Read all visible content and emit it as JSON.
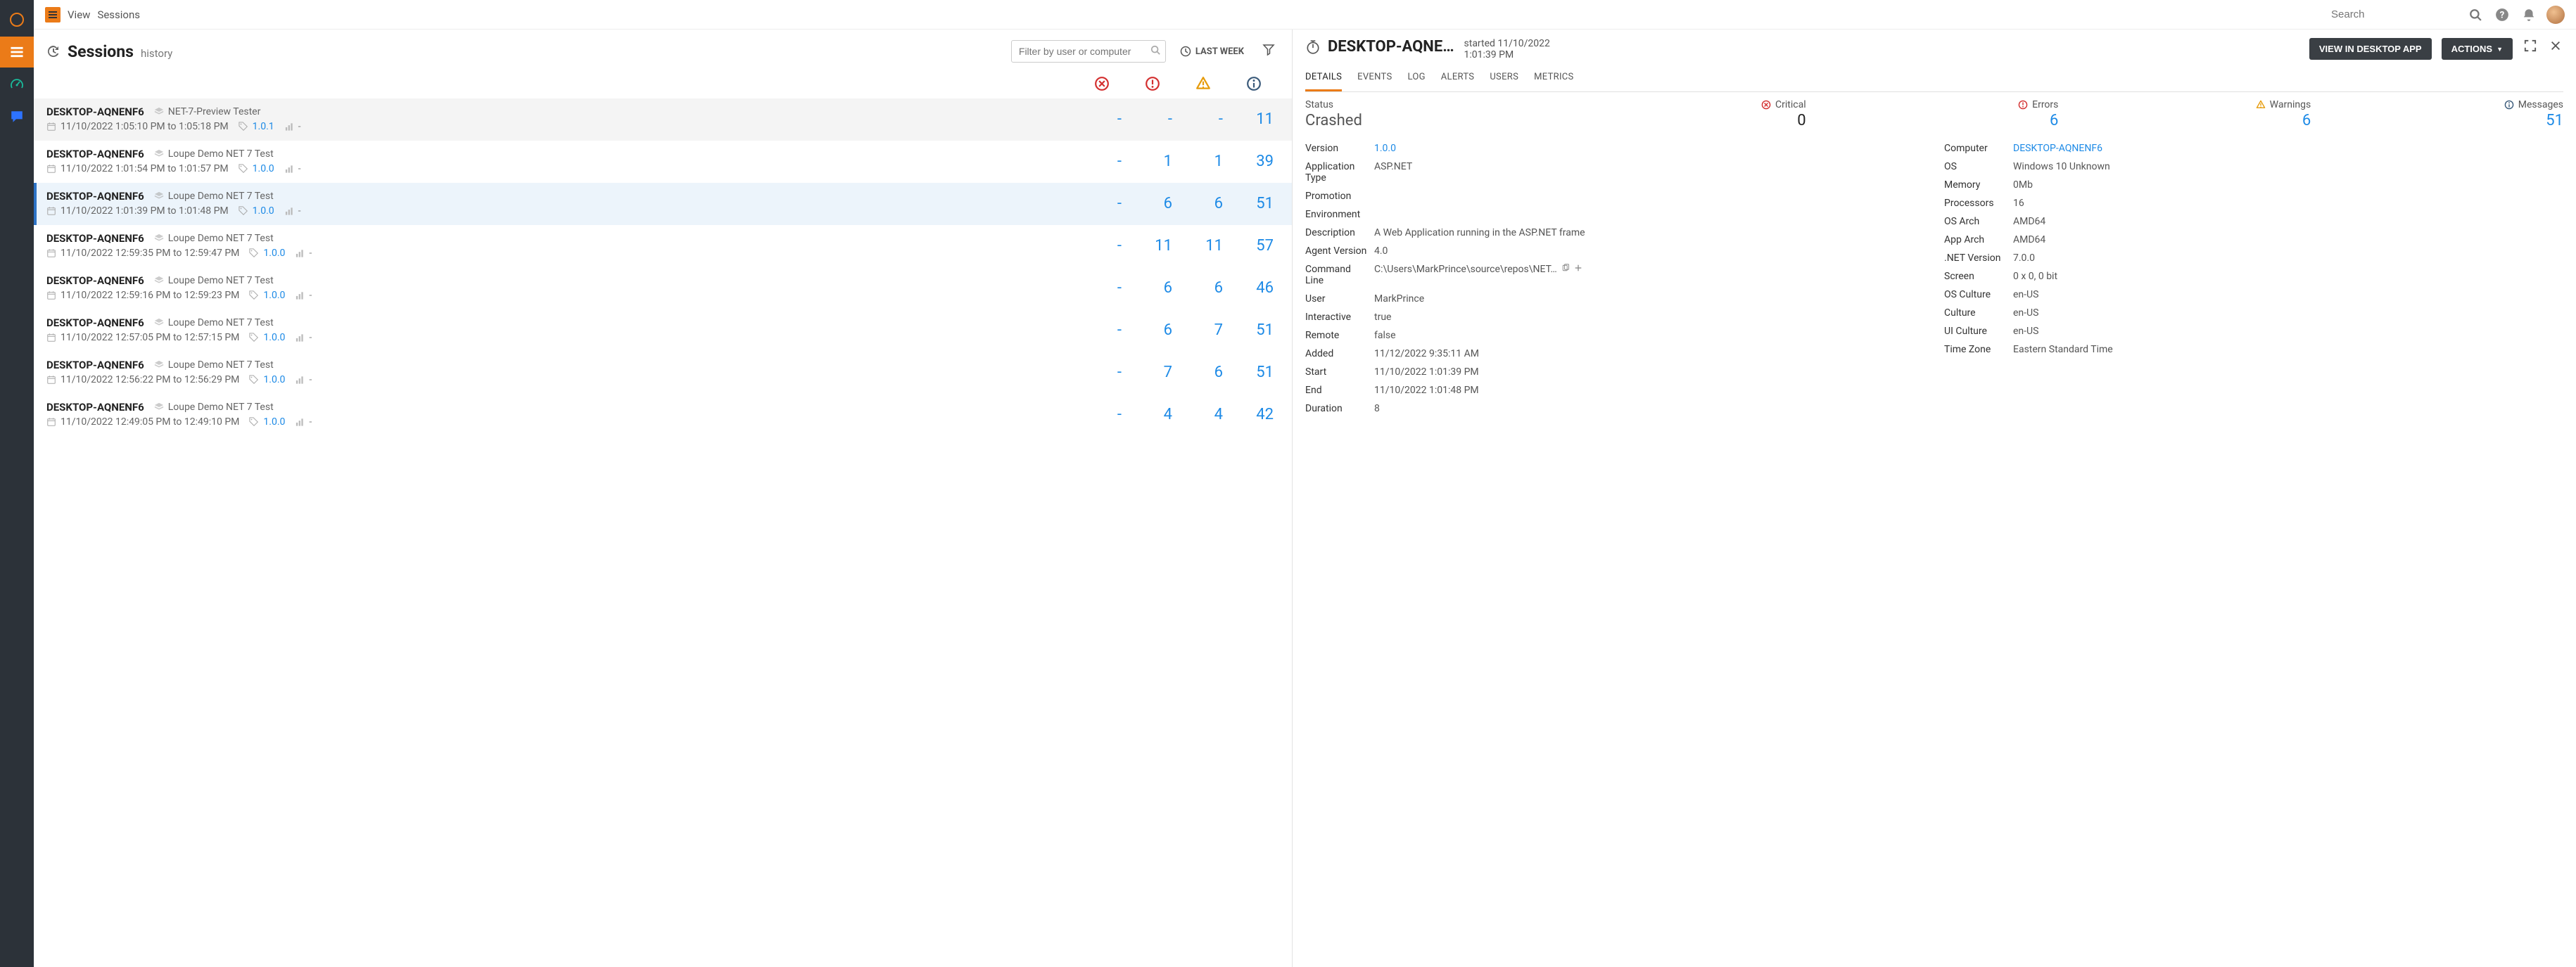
{
  "breadcrumb": {
    "view": "View",
    "section": "Sessions"
  },
  "search_placeholder": "Search",
  "sessions": {
    "title": "Sessions",
    "subtitle": "history",
    "filter_placeholder": "Filter by user or computer",
    "range_label": "LAST WEEK",
    "rows": [
      {
        "computer": "DESKTOP-AQNENF6",
        "app": "NET-7-Preview Tester",
        "time": "11/10/2022 1:05:10 PM to 1:05:18 PM",
        "version": "1.0.1",
        "env": "-",
        "critical": "-",
        "errors": "-",
        "warnings": "-",
        "messages": "11",
        "state": "hovered"
      },
      {
        "computer": "DESKTOP-AQNENF6",
        "app": "Loupe Demo NET 7 Test",
        "time": "11/10/2022 1:01:54 PM to 1:01:57 PM",
        "version": "1.0.0",
        "env": "-",
        "critical": "-",
        "errors": "1",
        "warnings": "1",
        "messages": "39",
        "state": ""
      },
      {
        "computer": "DESKTOP-AQNENF6",
        "app": "Loupe Demo NET 7 Test",
        "time": "11/10/2022 1:01:39 PM to 1:01:48 PM",
        "version": "1.0.0",
        "env": "-",
        "critical": "-",
        "errors": "6",
        "warnings": "6",
        "messages": "51",
        "state": "selected"
      },
      {
        "computer": "DESKTOP-AQNENF6",
        "app": "Loupe Demo NET 7 Test",
        "time": "11/10/2022 12:59:35 PM to 12:59:47 PM",
        "version": "1.0.0",
        "env": "-",
        "critical": "-",
        "errors": "11",
        "warnings": "11",
        "messages": "57",
        "state": ""
      },
      {
        "computer": "DESKTOP-AQNENF6",
        "app": "Loupe Demo NET 7 Test",
        "time": "11/10/2022 12:59:16 PM to 12:59:23 PM",
        "version": "1.0.0",
        "env": "-",
        "critical": "-",
        "errors": "6",
        "warnings": "6",
        "messages": "46",
        "state": ""
      },
      {
        "computer": "DESKTOP-AQNENF6",
        "app": "Loupe Demo NET 7 Test",
        "time": "11/10/2022 12:57:05 PM to 12:57:15 PM",
        "version": "1.0.0",
        "env": "-",
        "critical": "-",
        "errors": "6",
        "warnings": "7",
        "messages": "51",
        "state": ""
      },
      {
        "computer": "DESKTOP-AQNENF6",
        "app": "Loupe Demo NET 7 Test",
        "time": "11/10/2022 12:56:22 PM to 12:56:29 PM",
        "version": "1.0.0",
        "env": "-",
        "critical": "-",
        "errors": "7",
        "warnings": "6",
        "messages": "51",
        "state": ""
      },
      {
        "computer": "DESKTOP-AQNENF6",
        "app": "Loupe Demo NET 7 Test",
        "time": "11/10/2022 12:49:05 PM to 12:49:10 PM",
        "version": "1.0.0",
        "env": "-",
        "critical": "-",
        "errors": "4",
        "warnings": "4",
        "messages": "42",
        "state": ""
      }
    ]
  },
  "detail": {
    "title": "DESKTOP-AQNE…",
    "started_label": "started 11/10/2022 1:01:39 PM",
    "view_desktop_label": "VIEW IN DESKTOP APP",
    "actions_label": "ACTIONS",
    "tabs": [
      "DETAILS",
      "EVENTS",
      "LOG",
      "ALERTS",
      "USERS",
      "METRICS"
    ],
    "active_tab": 0,
    "stats": {
      "status_label": "Status",
      "status_value": "Crashed",
      "critical_label": "Critical",
      "critical_value": "0",
      "errors_label": "Errors",
      "errors_value": "6",
      "warnings_label": "Warnings",
      "warnings_value": "6",
      "messages_label": "Messages",
      "messages_value": "51"
    },
    "left_props": [
      {
        "k": "Version",
        "v": "1.0.0",
        "link": true
      },
      {
        "k": "Application Type",
        "v": "ASP.NET"
      },
      {
        "k": "Promotion",
        "v": ""
      },
      {
        "k": "Environment",
        "v": ""
      },
      {
        "k": "Description",
        "v": "A Web Application running in the ASP.NET frame"
      },
      {
        "k": "Agent Version",
        "v": "4.0"
      },
      {
        "k": "Command Line",
        "v": "C:\\Users\\MarkPrince\\source\\repos\\NET…",
        "copy": true
      },
      {
        "k": "User",
        "v": "MarkPrince"
      },
      {
        "k": "Interactive",
        "v": "true"
      },
      {
        "k": "Remote",
        "v": "false"
      },
      {
        "k": "Added",
        "v": "11/12/2022 9:35:11 AM"
      },
      {
        "k": "Start",
        "v": "11/10/2022 1:01:39 PM"
      },
      {
        "k": "End",
        "v": "11/10/2022 1:01:48 PM"
      },
      {
        "k": "Duration",
        "v": "8"
      }
    ],
    "right_props": [
      {
        "k": "Computer",
        "v": "DESKTOP-AQNENF6",
        "link": true
      },
      {
        "k": "OS",
        "v": "Windows 10 Unknown"
      },
      {
        "k": "Memory",
        "v": "0Mb"
      },
      {
        "k": "Processors",
        "v": "16"
      },
      {
        "k": "OS Arch",
        "v": "AMD64"
      },
      {
        "k": "App Arch",
        "v": "AMD64"
      },
      {
        "k": ".NET Version",
        "v": "7.0.0"
      },
      {
        "k": "Screen",
        "v": "0 x 0, 0 bit"
      },
      {
        "k": "OS Culture",
        "v": "en-US"
      },
      {
        "k": "Culture",
        "v": "en-US"
      },
      {
        "k": "UI Culture",
        "v": "en-US"
      },
      {
        "k": "Time Zone",
        "v": "Eastern Standard Time"
      }
    ]
  },
  "colors": {
    "accent": "#eb7b18",
    "link": "#1d8ae6",
    "critical": "#d32f2f",
    "error": "#d32f2f",
    "warning": "#e69b0b",
    "info": "#3a5a7a",
    "rail": "#2c3239"
  }
}
